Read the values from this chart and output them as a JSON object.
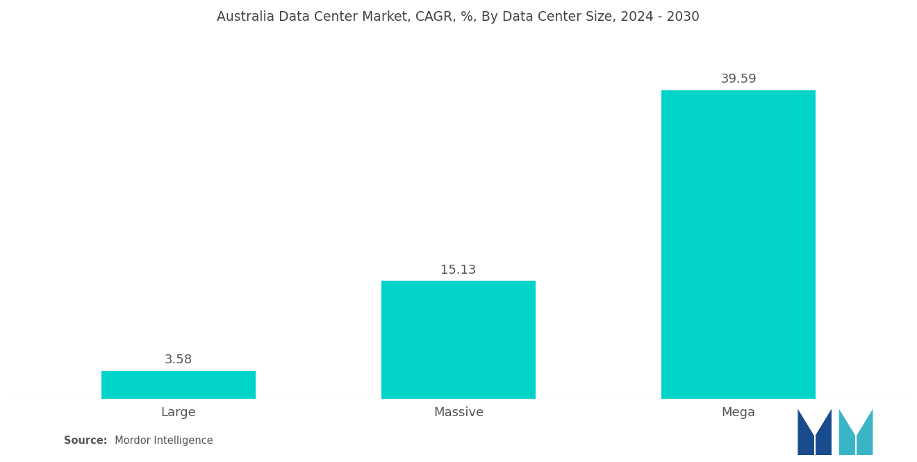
{
  "title": "Australia Data Center Market, CAGR, %, By Data Center Size, 2024 - 2030",
  "categories": [
    "Large",
    "Massive",
    "Mega"
  ],
  "values": [
    3.58,
    15.13,
    39.59
  ],
  "bar_color": "#00D4C8",
  "background_color": "#ffffff",
  "title_fontsize": 13.5,
  "label_fontsize": 13,
  "value_fontsize": 13,
  "source_bold": "Source:",
  "source_normal": "  Mordor Intelligence",
  "ylim": [
    0,
    46
  ],
  "bar_width": 0.55,
  "logo_left_color": "#1a4b8c",
  "logo_right_color": "#3ab5c6"
}
